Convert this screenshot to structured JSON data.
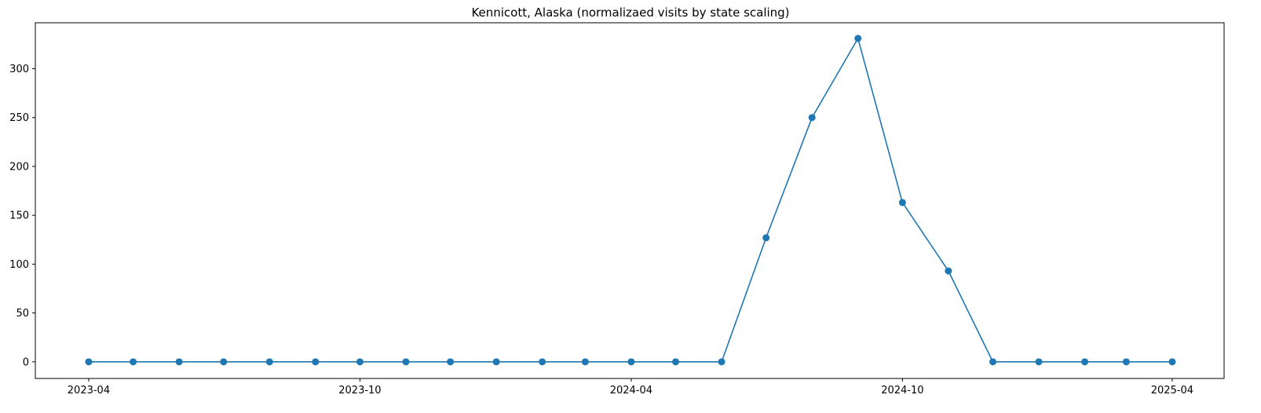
{
  "chart_data": {
    "type": "line",
    "title": "Kennicott, Alaska (normalizaed visits by state scaling)",
    "xlabel": "",
    "ylabel": "",
    "x": [
      "2023-04-01",
      "2023-05-01",
      "2023-06-01",
      "2023-07-01",
      "2023-08-01",
      "2023-09-01",
      "2023-10-01",
      "2023-11-01",
      "2023-12-01",
      "2024-01-01",
      "2024-02-01",
      "2024-03-01",
      "2024-04-01",
      "2024-05-01",
      "2024-06-01",
      "2024-07-01",
      "2024-08-01",
      "2024-09-01",
      "2024-10-01",
      "2024-11-01",
      "2024-12-01",
      "2025-01-01",
      "2025-02-01",
      "2025-03-01",
      "2025-04-01"
    ],
    "series": [
      {
        "values": [
          0,
          0,
          0,
          0,
          0,
          0,
          0,
          0,
          0,
          0,
          0,
          0,
          0,
          0,
          0,
          127,
          250,
          331,
          163,
          93,
          0,
          0,
          0,
          0,
          0
        ]
      }
    ],
    "x_ticks": [
      "2023-04",
      "2023-10",
      "2024-04",
      "2024-10",
      "2025-04"
    ],
    "y_ticks": [
      0,
      50,
      100,
      150,
      200,
      250,
      300
    ],
    "ylim": [
      -17,
      347
    ],
    "xlim": [
      "2023-02-24",
      "2025-05-06"
    ],
    "grid": false,
    "markers": true,
    "line_color": "#1f77b4"
  }
}
